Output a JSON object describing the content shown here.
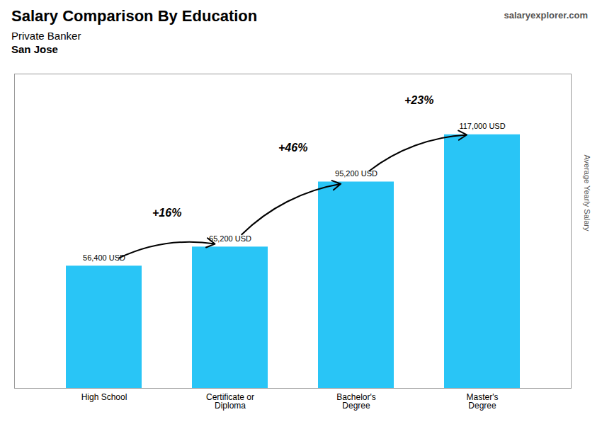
{
  "chart_data": {
    "type": "bar",
    "title": "Salary Comparison By Education",
    "subtitle": [
      "Private Banker",
      "San Jose"
    ],
    "ylabel": "Average Yearly Salary",
    "categories": [
      "High School",
      "Certificate or\nDiploma",
      "Bachelor's\nDegree",
      "Master's\nDegree"
    ],
    "values": [
      56400,
      65200,
      95200,
      117000
    ],
    "value_labels": [
      "56,400 USD",
      "65,200 USD",
      "95,200 USD",
      "117,000 USD"
    ],
    "data_labels": true,
    "color": "#29c5f6",
    "ylim": [
      0,
      145000
    ],
    "tick_labels": "x",
    "grid": false,
    "annotations": [
      {
        "text": "+16%",
        "from": "High School",
        "to": "Certificate or\nDiploma"
      },
      {
        "text": "+46%",
        "from": "Certificate or\nDiploma",
        "to": "Bachelor's\nDegree"
      },
      {
        "text": "+23%",
        "from": "Bachelor's\nDegree",
        "to": "Master's\nDegree"
      },
      {
        "text": "salaryexplorer.com"
      }
    ]
  }
}
